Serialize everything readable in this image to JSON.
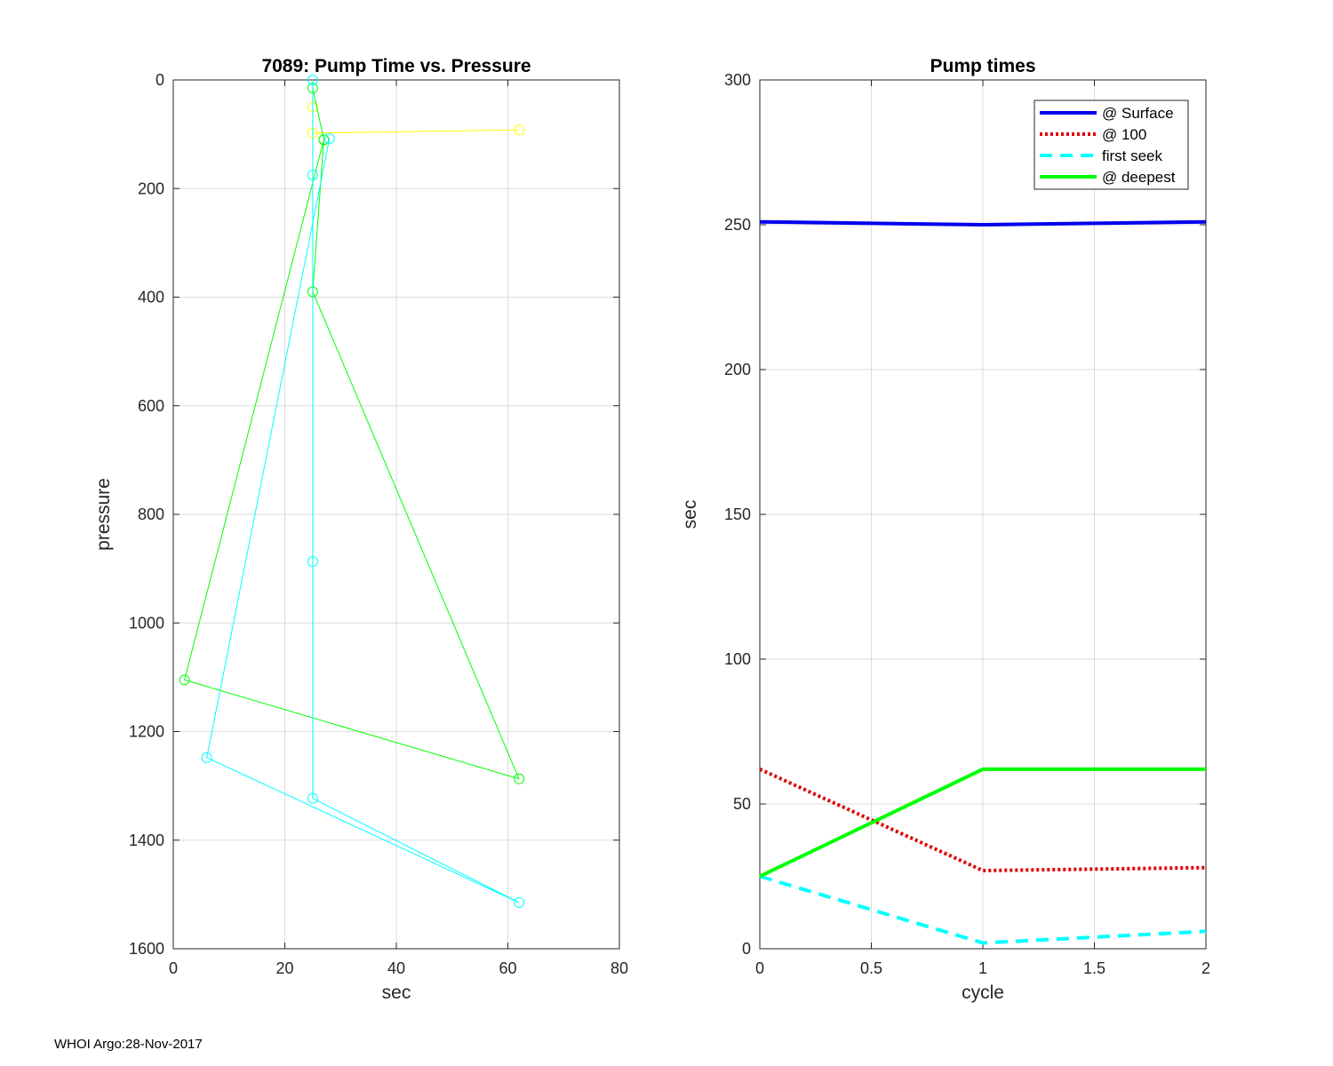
{
  "footer": "WHOI Argo:28-Nov-2017",
  "chart_data": [
    {
      "type": "line",
      "title": "7089: Pump Time vs. Pressure",
      "xlabel": "sec",
      "ylabel": "pressure",
      "xlim": [
        0,
        80
      ],
      "ylim": [
        0,
        1600
      ],
      "y_reversed": true,
      "xticks": [
        0,
        20,
        40,
        60,
        80
      ],
      "yticks": [
        0,
        200,
        400,
        600,
        800,
        1000,
        1200,
        1400,
        1600
      ],
      "grid": true,
      "markers": "circle",
      "series": [
        {
          "color": "#ffff00",
          "points": [
            [
              25,
              50
            ],
            [
              25,
              98
            ],
            [
              62,
              92
            ]
          ]
        },
        {
          "color": "#00ff00",
          "points": [
            [
              25,
              15
            ],
            [
              27,
              110
            ],
            [
              2,
              1105
            ],
            [
              62,
              1287
            ],
            [
              25,
              390
            ],
            [
              27,
              110
            ]
          ]
        },
        {
          "color": "#00ffff",
          "points": [
            [
              25,
              0
            ],
            [
              25,
              175
            ],
            [
              25,
              887
            ],
            [
              25,
              1323
            ],
            [
              62,
              1515
            ],
            [
              6,
              1248
            ],
            [
              28,
              108
            ]
          ]
        }
      ]
    },
    {
      "type": "line",
      "title": "Pump times",
      "xlabel": "cycle",
      "ylabel": "sec",
      "xlim": [
        0,
        2
      ],
      "ylim": [
        0,
        300
      ],
      "xticks": [
        0,
        0.5,
        1,
        1.5,
        2
      ],
      "yticks": [
        0,
        50,
        100,
        150,
        200,
        250,
        300
      ],
      "grid": true,
      "legend_position": "top-right",
      "categories": [
        0,
        1,
        2
      ],
      "series": [
        {
          "name": "@ Surface",
          "color": "#0000ee",
          "dash": "solid",
          "values": [
            251,
            250,
            251
          ]
        },
        {
          "name": "@ 100",
          "color": "#e00000",
          "dash": "dotted",
          "values": [
            62,
            27,
            28
          ]
        },
        {
          "name": "first seek",
          "color": "#00ffff",
          "dash": "dashed",
          "values": [
            25,
            2,
            6
          ]
        },
        {
          "name": "@ deepest",
          "color": "#00ff00",
          "dash": "solid",
          "values": [
            25,
            62,
            62
          ]
        }
      ]
    }
  ]
}
